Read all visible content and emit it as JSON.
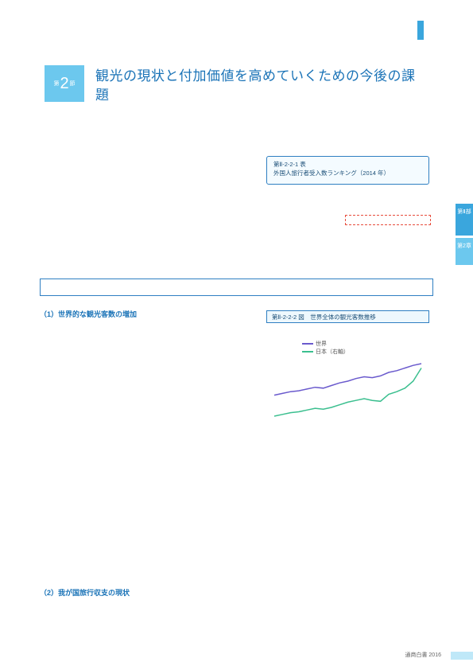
{
  "top_marker_color": "#3aa6dd",
  "section": {
    "badge_prefix": "第",
    "badge_number": "2",
    "badge_suffix": "節",
    "badge_bg": "#6cc8ee",
    "title": "観光の現状と付加価値を高めていくための今後の課題",
    "title_color": "#1a73b7"
  },
  "table_box": {
    "line1": "第Ⅱ-2-2-1 表",
    "line2": "外国人旅行者受入数ランキング（2014 年）",
    "border_color": "#2f7fc2",
    "bg": "#f4fbff"
  },
  "dashed_highlight": {
    "border_color": "#e74c3c"
  },
  "blue_band": {
    "border_color": "#2f7fc2"
  },
  "subhead1": "（1）世界的な観光客数の増加",
  "subhead2": "（2）我が国旅行収支の現状",
  "chart": {
    "type": "line",
    "title": "第Ⅱ-2-2-2 図　世界全体の観光客数推移",
    "legend": [
      {
        "label": "世界",
        "color": "#6a5acd"
      },
      {
        "label": "日本（右軸）",
        "color": "#3bbf8f"
      }
    ],
    "x_range": [
      0,
      18
    ],
    "y_range_world": [
      0,
      100
    ],
    "y_range_japan": [
      0,
      100
    ],
    "series": {
      "world": [
        44,
        46,
        48,
        49,
        51,
        53,
        52,
        55,
        58,
        60,
        63,
        65,
        64,
        66,
        70,
        72,
        75,
        78,
        80
      ],
      "japan": [
        20,
        22,
        24,
        25,
        27,
        29,
        28,
        30,
        33,
        36,
        38,
        40,
        38,
        37,
        45,
        48,
        52,
        60,
        75
      ]
    },
    "line_width": 1.5,
    "background_color": "#ffffff",
    "grid_color": "#eeeeee"
  },
  "side_tabs": [
    {
      "text": "第Ⅱ部",
      "bg": "#3aa6dd"
    },
    {
      "text": "第2章",
      "bg": "#6cc8ee"
    }
  ],
  "footer": {
    "text": "通商白書 2016",
    "bar_color": "#bfe8f8"
  }
}
